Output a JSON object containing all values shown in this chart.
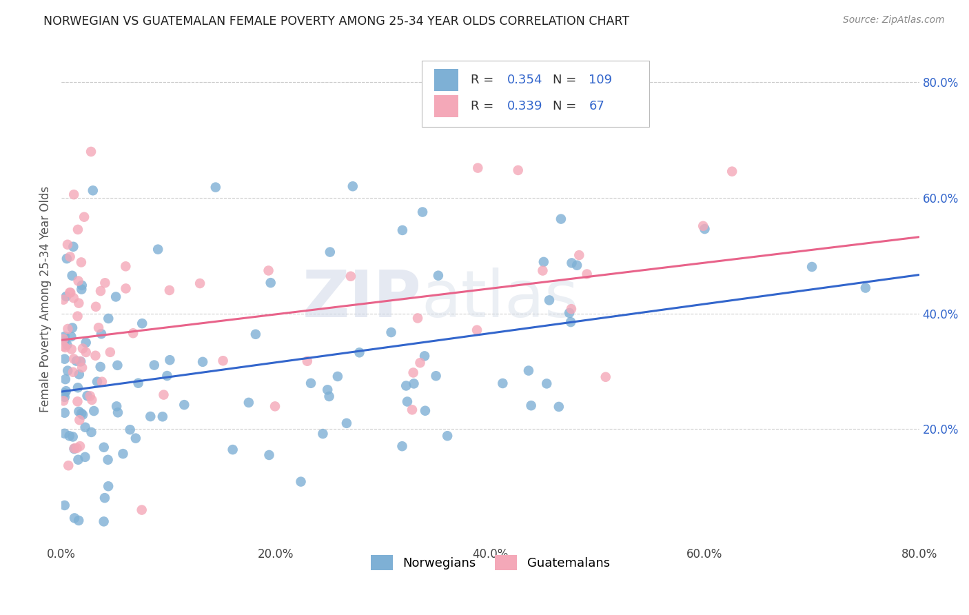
{
  "title": "NORWEGIAN VS GUATEMALAN FEMALE POVERTY AMONG 25-34 YEAR OLDS CORRELATION CHART",
  "source": "Source: ZipAtlas.com",
  "ylabel": "Female Poverty Among 25-34 Year Olds",
  "xlim": [
    0.0,
    0.8
  ],
  "ylim": [
    0.0,
    0.85
  ],
  "xtick_labels": [
    "0.0%",
    "20.0%",
    "40.0%",
    "60.0%",
    "80.0%"
  ],
  "xtick_vals": [
    0.0,
    0.2,
    0.4,
    0.6,
    0.8
  ],
  "ytick_labels_right": [
    "20.0%",
    "40.0%",
    "60.0%",
    "80.0%"
  ],
  "ytick_vals_right": [
    0.2,
    0.4,
    0.6,
    0.8
  ],
  "background_color": "#ffffff",
  "grid_color": "#cccccc",
  "norwegian_color": "#7EB0D5",
  "guatemalan_color": "#F4A8B8",
  "norwegian_line_color": "#3366CC",
  "guatemalan_line_color": "#E8638A",
  "R_norwegian": 0.354,
  "N_norwegian": 109,
  "R_guatemalan": 0.339,
  "N_guatemalan": 67,
  "watermark_zip": "ZIP",
  "watermark_atlas": "atlas"
}
